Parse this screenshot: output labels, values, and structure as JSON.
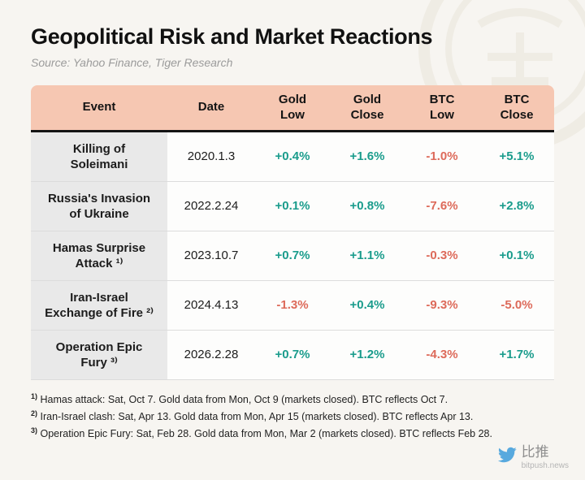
{
  "header": {
    "title": "Geopolitical Risk and Market Reactions",
    "source": "Source: Yahoo Finance, Tiger Research"
  },
  "colors": {
    "positive": "#1a9c8c",
    "negative": "#dd6a5a",
    "header_bg": "#f6c7b2",
    "event_column_bg": "#e9e9e9",
    "brand_blue": "#58a9de"
  },
  "chart_data": {
    "type": "table",
    "title": "Geopolitical Risk and Market Reactions",
    "columns": [
      "Event",
      "Date",
      "Gold\nLow",
      "Gold\nClose",
      "BTC\nLow",
      "BTC\nClose"
    ],
    "rows": [
      {
        "event": "Killing of\nSoleimani",
        "date": "2020.1.3",
        "values": [
          "+0.4%",
          "+1.6%",
          "-1.0%",
          "+5.1%"
        ]
      },
      {
        "event": "Russia's Invasion\nof Ukraine",
        "date": "2022.2.24",
        "values": [
          "+0.1%",
          "+0.8%",
          "-7.6%",
          "+2.8%"
        ]
      },
      {
        "event": "Hamas Surprise\nAttack ¹⁾",
        "date": "2023.10.7",
        "values": [
          "+0.7%",
          "+1.1%",
          "-0.3%",
          "+0.1%"
        ]
      },
      {
        "event": "Iran-Israel\nExchange of Fire ²⁾",
        "date": "2024.4.13",
        "values": [
          "-1.3%",
          "+0.4%",
          "-9.3%",
          "-5.0%"
        ]
      },
      {
        "event": "Operation Epic\nFury ³⁾",
        "date": "2026.2.28",
        "values": [
          "+0.7%",
          "+1.2%",
          "-4.3%",
          "+1.7%"
        ]
      }
    ]
  },
  "footnotes": [
    {
      "marker": "1)",
      "text": "Hamas attack: Sat, Oct 7. Gold data from Mon, Oct 9 (markets closed). BTC reflects Oct 7."
    },
    {
      "marker": "2)",
      "text": "Iran-Israel clash: Sat, Apr 13. Gold data from Mon, Apr 15 (markets closed). BTC reflects Apr 13."
    },
    {
      "marker": "3)",
      "text": "Operation Epic Fury: Sat, Feb 28. Gold data from Mon, Mar 2 (markets closed). BTC reflects Feb 28."
    }
  ],
  "branding": {
    "name": "比推",
    "domain": "bitpush.news"
  }
}
